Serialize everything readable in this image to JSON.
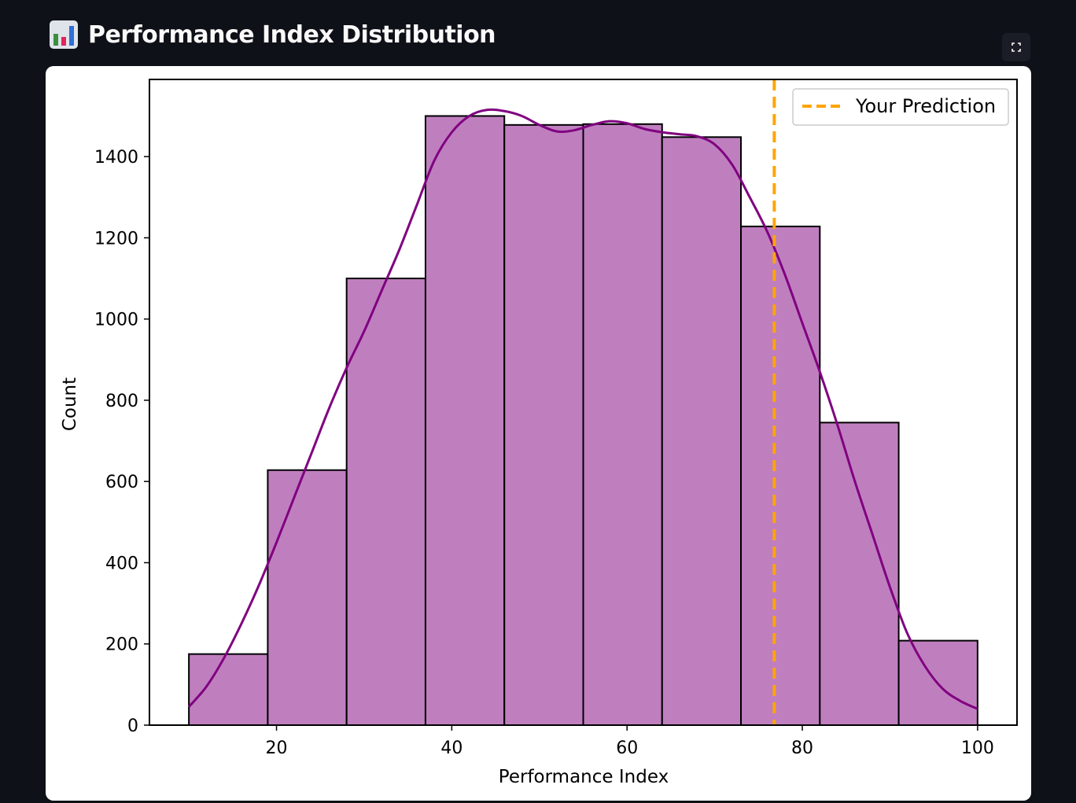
{
  "header": {
    "title": "Performance Index Distribution",
    "icon": "bar-chart-icon"
  },
  "toolbar": {
    "fullscreen_icon": "fullscreen-icon"
  },
  "colors": {
    "page_bg": "#0e1117",
    "bar_fill": "#bf7fbf",
    "bar_edge": "#000000",
    "kde_line": "#800080",
    "prediction_line": "#ffa500"
  },
  "chart_data": {
    "type": "bar",
    "xlabel": "Performance Index",
    "ylabel": "Count",
    "xlim": [
      5.5,
      104.5
    ],
    "ylim": [
      0,
      1590
    ],
    "xticks": [
      20,
      40,
      60,
      80,
      100
    ],
    "yticks": [
      0,
      200,
      400,
      600,
      800,
      1000,
      1200,
      1400
    ],
    "bins": [
      {
        "start": 10,
        "end": 19,
        "count": 175
      },
      {
        "start": 19,
        "end": 28,
        "count": 628
      },
      {
        "start": 28,
        "end": 37,
        "count": 1100
      },
      {
        "start": 37,
        "end": 46,
        "count": 1500
      },
      {
        "start": 46,
        "end": 55,
        "count": 1478
      },
      {
        "start": 55,
        "end": 64,
        "count": 1480
      },
      {
        "start": 64,
        "end": 73,
        "count": 1448
      },
      {
        "start": 73,
        "end": 82,
        "count": 1228
      },
      {
        "start": 82,
        "end": 91,
        "count": 745
      },
      {
        "start": 91,
        "end": 100,
        "count": 208
      }
    ],
    "kde": {
      "x": [
        10,
        12,
        14,
        16,
        18,
        20,
        22,
        24,
        26,
        28,
        30,
        32,
        34,
        36,
        38,
        40,
        42,
        44,
        46,
        48,
        50,
        52,
        54,
        56,
        58,
        60,
        62,
        64,
        66,
        68,
        70,
        72,
        74,
        76,
        78,
        80,
        82,
        84,
        86,
        88,
        90,
        92,
        94,
        96,
        98,
        100
      ],
      "y": [
        45,
        95,
        165,
        250,
        345,
        450,
        560,
        670,
        780,
        880,
        970,
        1070,
        1170,
        1280,
        1390,
        1460,
        1500,
        1515,
        1512,
        1500,
        1478,
        1462,
        1465,
        1478,
        1487,
        1482,
        1468,
        1460,
        1455,
        1450,
        1430,
        1380,
        1300,
        1215,
        1110,
        990,
        870,
        740,
        600,
        470,
        340,
        225,
        145,
        90,
        60,
        40
      ]
    },
    "prediction_x": 76.8,
    "legend": {
      "position": "upper right",
      "label": "Your Prediction"
    }
  }
}
